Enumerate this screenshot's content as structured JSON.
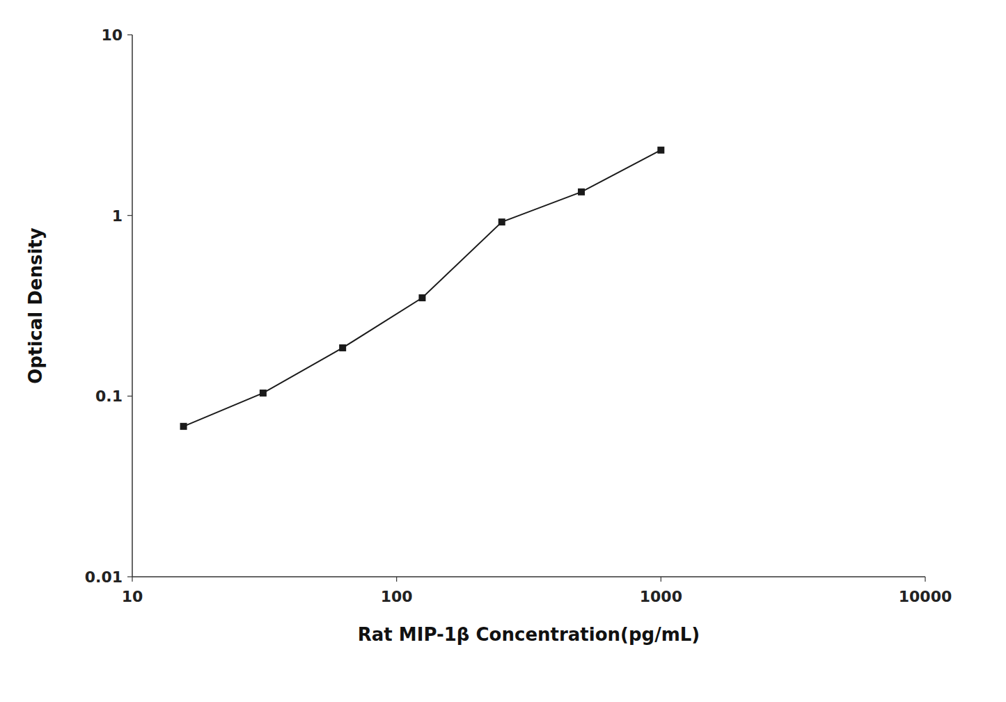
{
  "chart_data": {
    "type": "line",
    "x": [
      15.625,
      31.25,
      62.5,
      125,
      250,
      500,
      1000
    ],
    "values": [
      0.068,
      0.104,
      0.185,
      0.35,
      0.92,
      1.35,
      2.3
    ],
    "xlabel": "Rat MIP-1β Concentration(pg/mL)",
    "ylabel": "Optical Density",
    "xlim": [
      10,
      10000
    ],
    "ylim": [
      0.01,
      10
    ],
    "xticks": [
      10,
      100,
      1000,
      10000
    ],
    "yticks": [
      0.01,
      0.1,
      1,
      10
    ],
    "log": true,
    "grid": false,
    "color": "#1a1a1a",
    "marker": "square"
  }
}
